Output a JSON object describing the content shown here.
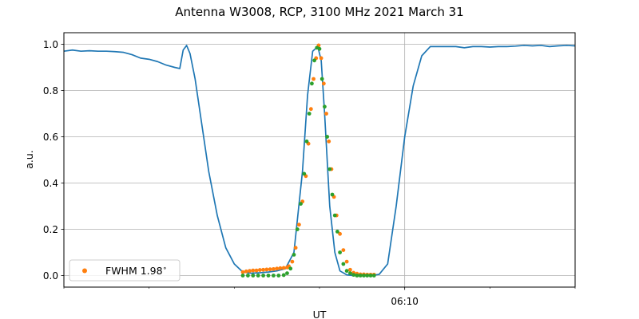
{
  "chart_data": {
    "type": "line",
    "title": "Antenna W3008, RCP, 3100 MHz 2021 March 31",
    "xlabel": "UT",
    "ylabel": "a.u.",
    "xlim": [
      0,
      30
    ],
    "ylim": [
      -0.05,
      1.05
    ],
    "y_ticks": [
      0.0,
      0.2,
      0.4,
      0.6,
      0.8,
      1.0
    ],
    "y_tick_labels": [
      "0.0",
      "0.2",
      "0.4",
      "0.6",
      "0.8",
      "1.0"
    ],
    "x_major_ticks": [
      {
        "x": 20,
        "label": "06:10"
      }
    ],
    "x_minor_ticks": [
      0,
      5,
      10,
      15,
      25,
      30
    ],
    "grid": true,
    "legend_position": "lower-left",
    "colors": {
      "line": "#1f77b4",
      "orange": "#ff7f0e",
      "green": "#2ca02c"
    },
    "series": [
      {
        "kind": "line",
        "color": "#1f77b4",
        "x": [
          0,
          0.5,
          1,
          1.5,
          2,
          2.5,
          3,
          3.5,
          4,
          4.5,
          5,
          5.5,
          6,
          6.5,
          6.8,
          7,
          7.2,
          7.4,
          7.7,
          8,
          8.5,
          9,
          9.5,
          10,
          10.5,
          11,
          11.5,
          12,
          12.5,
          13,
          13.5,
          14,
          14.3,
          14.6,
          14.9,
          15.1,
          15.3,
          15.6,
          15.9,
          16.2,
          16.6,
          17,
          17.5,
          18,
          18.5,
          19,
          19.5,
          20,
          20.5,
          21,
          21.5,
          22,
          22.5,
          23,
          23.5,
          24,
          24.5,
          25,
          25.5,
          26,
          26.5,
          27,
          27.5,
          28,
          28.5,
          29,
          29.5,
          30
        ],
        "y": [
          0.97,
          0.975,
          0.97,
          0.972,
          0.97,
          0.97,
          0.968,
          0.965,
          0.955,
          0.94,
          0.935,
          0.925,
          0.91,
          0.9,
          0.895,
          0.975,
          0.995,
          0.96,
          0.85,
          0.7,
          0.45,
          0.26,
          0.12,
          0.05,
          0.015,
          0.01,
          0.012,
          0.015,
          0.02,
          0.03,
          0.1,
          0.45,
          0.78,
          0.97,
          0.99,
          0.93,
          0.7,
          0.3,
          0.1,
          0.02,
          0.003,
          0.0,
          0.0,
          0.0,
          0.005,
          0.05,
          0.3,
          0.6,
          0.82,
          0.95,
          0.99,
          0.99,
          0.99,
          0.99,
          0.985,
          0.99,
          0.99,
          0.988,
          0.99,
          0.99,
          0.992,
          0.995,
          0.993,
          0.995,
          0.99,
          0.993,
          0.995,
          0.993
        ]
      },
      {
        "kind": "scatter",
        "name": "FWHM 1.98$^\\circ$",
        "label_text": "FWHM 1.98",
        "label_superscript": "∘",
        "color": "#ff7f0e",
        "x": [
          10.5,
          10.7,
          10.9,
          11.1,
          11.3,
          11.5,
          11.7,
          11.9,
          12.1,
          12.3,
          12.5,
          12.7,
          12.9,
          13.1,
          13.2,
          13.4,
          13.6,
          13.8,
          14.0,
          14.2,
          14.35,
          14.5,
          14.65,
          14.8,
          14.95,
          15.1,
          15.25,
          15.4,
          15.55,
          15.7,
          15.85,
          16.0,
          16.2,
          16.4,
          16.6,
          16.8,
          17.0,
          17.2,
          17.4,
          17.6,
          17.8,
          18.0,
          18.2
        ],
        "y": [
          0.015,
          0.018,
          0.02,
          0.022,
          0.022,
          0.024,
          0.025,
          0.026,
          0.027,
          0.028,
          0.03,
          0.032,
          0.033,
          0.035,
          0.04,
          0.06,
          0.12,
          0.22,
          0.32,
          0.43,
          0.57,
          0.72,
          0.85,
          0.94,
          0.995,
          0.94,
          0.83,
          0.7,
          0.58,
          0.46,
          0.34,
          0.26,
          0.18,
          0.11,
          0.06,
          0.025,
          0.012,
          0.008,
          0.005,
          0.005,
          0.004,
          0.004,
          0.004
        ]
      },
      {
        "kind": "scatter",
        "color": "#2ca02c",
        "x": [
          10.5,
          10.8,
          11.1,
          11.4,
          11.7,
          12.0,
          12.3,
          12.6,
          12.9,
          13.1,
          13.3,
          13.5,
          13.7,
          13.9,
          14.1,
          14.25,
          14.4,
          14.55,
          14.7,
          14.85,
          15.0,
          15.15,
          15.3,
          15.45,
          15.6,
          15.75,
          15.9,
          16.05,
          16.2,
          16.4,
          16.6,
          16.8,
          17.0,
          17.2,
          17.4,
          17.6,
          17.8,
          18.0,
          18.2
        ],
        "y": [
          0.0,
          0.0,
          0.0,
          0.0,
          0.0,
          0.0,
          0.0,
          0.0,
          0.002,
          0.01,
          0.03,
          0.09,
          0.2,
          0.31,
          0.44,
          0.58,
          0.7,
          0.83,
          0.93,
          0.985,
          0.98,
          0.85,
          0.73,
          0.6,
          0.46,
          0.35,
          0.26,
          0.19,
          0.1,
          0.05,
          0.02,
          0.01,
          0.003,
          0.0,
          0.0,
          0.0,
          0.0,
          0.0,
          0.0
        ]
      }
    ]
  }
}
